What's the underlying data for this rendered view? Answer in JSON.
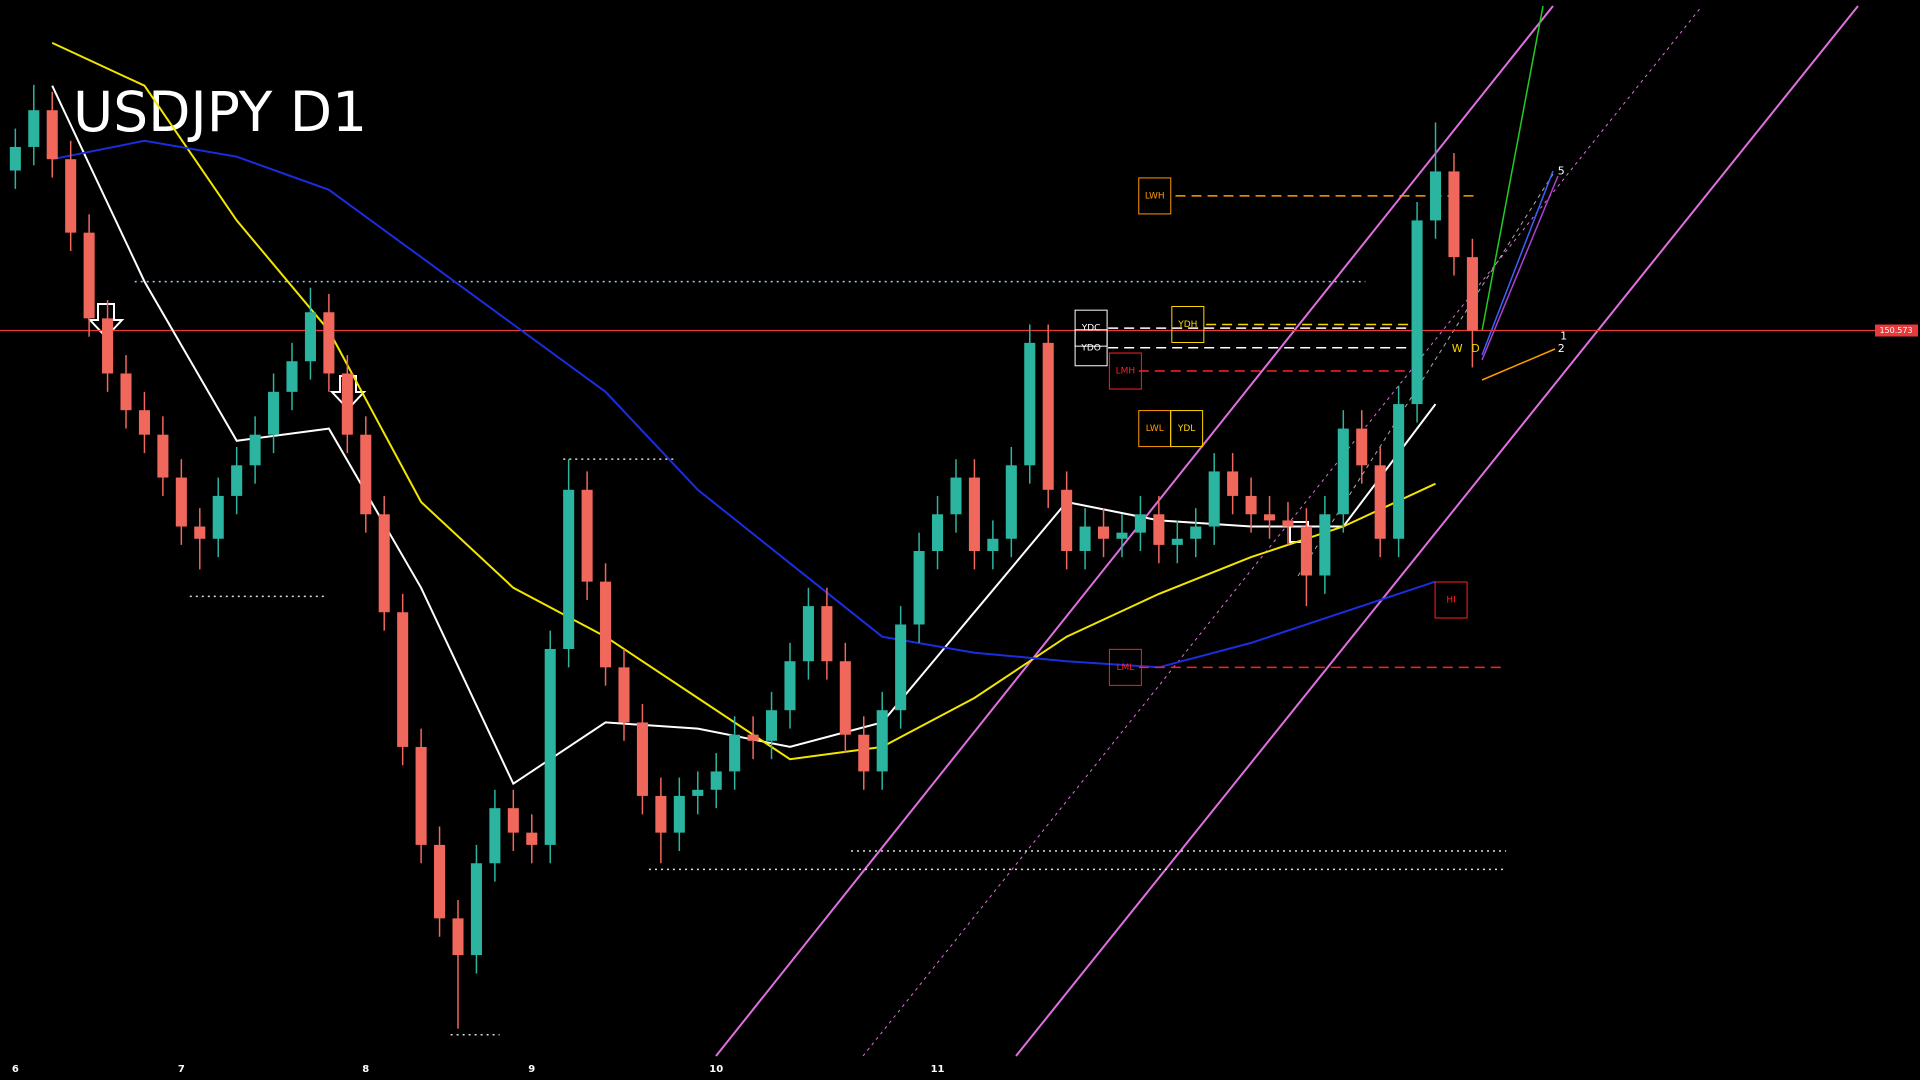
{
  "chart_data": {
    "type": "candlestick",
    "title": "USDJPY D1",
    "categories": [
      "6",
      null,
      null,
      null,
      null,
      null,
      null,
      null,
      null,
      "7",
      null,
      null,
      null,
      null,
      null,
      null,
      null,
      null,
      null,
      "8",
      null,
      null,
      null,
      null,
      null,
      null,
      null,
      null,
      "9",
      null,
      null,
      null,
      null,
      null,
      null,
      null,
      null,
      null,
      "10",
      null,
      null,
      null,
      null,
      null,
      null,
      null,
      null,
      null,
      null,
      null,
      "11",
      null,
      null,
      null,
      null,
      null,
      null,
      null,
      null,
      null,
      null,
      null,
      null,
      null,
      null,
      null,
      null,
      null,
      null,
      null,
      null,
      null,
      null,
      null,
      null,
      null,
      null,
      null,
      null,
      null
    ],
    "open": [
      155.8,
      156.57,
      157.77,
      156.17,
      153.77,
      150.97,
      149.17,
      147.97,
      147.17,
      145.77,
      144.17,
      143.77,
      145.17,
      146.17,
      147.17,
      148.57,
      149.57,
      151.17,
      149.17,
      147.17,
      144.57,
      141.37,
      136.97,
      133.77,
      131.37,
      130.17,
      133.17,
      134.97,
      134.17,
      133.77,
      140.17,
      145.37,
      142.37,
      139.57,
      137.77,
      135.37,
      134.17,
      135.37,
      135.57,
      136.17,
      137.37,
      137.17,
      138.17,
      139.77,
      141.57,
      139.77,
      137.37,
      136.17,
      138.17,
      140.97,
      143.37,
      144.57,
      145.77,
      143.37,
      143.77,
      146.17,
      150.17,
      145.37,
      143.37,
      144.17,
      143.77,
      143.97,
      144.57,
      143.57,
      143.77,
      144.17,
      145.97,
      145.17,
      144.57,
      144.37,
      144.17,
      142.57,
      144.57,
      147.37,
      146.17,
      143.77,
      148.17,
      154.17,
      155.77,
      152.97
    ],
    "high": [
      157.17,
      158.6,
      158.37,
      156.77,
      154.37,
      151.57,
      149.77,
      148.57,
      147.77,
      146.37,
      144.77,
      145.77,
      146.77,
      147.77,
      149.17,
      150.17,
      151.97,
      151.77,
      149.77,
      147.77,
      145.17,
      141.97,
      137.57,
      134.37,
      131.97,
      133.77,
      135.57,
      135.57,
      134.77,
      140.77,
      146.37,
      145.97,
      142.97,
      140.17,
      138.37,
      135.97,
      135.97,
      136.17,
      136.77,
      137.97,
      137.97,
      138.77,
      140.37,
      142.17,
      142.17,
      140.37,
      137.97,
      138.77,
      141.57,
      143.97,
      145.17,
      146.37,
      146.37,
      144.37,
      146.77,
      150.77,
      150.77,
      145.97,
      144.77,
      144.77,
      144.57,
      145.17,
      145.17,
      144.37,
      144.77,
      146.57,
      146.57,
      145.77,
      145.17,
      144.97,
      144.77,
      145.17,
      147.97,
      147.97,
      146.77,
      148.77,
      154.77,
      157.37,
      156.37,
      153.57
    ],
    "low": [
      155.2,
      155.97,
      155.57,
      153.17,
      150.37,
      148.57,
      147.37,
      146.57,
      145.17,
      143.57,
      142.77,
      143.17,
      144.57,
      145.57,
      146.57,
      147.97,
      148.97,
      148.57,
      146.57,
      143.97,
      140.77,
      136.37,
      133.17,
      130.77,
      127.77,
      129.57,
      132.57,
      133.57,
      133.17,
      133.17,
      139.57,
      141.77,
      138.97,
      137.17,
      134.77,
      133.17,
      133.57,
      134.77,
      134.97,
      135.57,
      136.57,
      136.57,
      137.57,
      139.17,
      139.17,
      136.77,
      135.57,
      135.57,
      137.57,
      140.37,
      142.77,
      143.97,
      142.77,
      142.77,
      143.17,
      145.57,
      144.77,
      142.77,
      142.77,
      143.17,
      143.17,
      143.37,
      142.97,
      142.97,
      143.17,
      143.57,
      144.57,
      143.97,
      143.77,
      143.57,
      141.57,
      141.97,
      143.97,
      145.57,
      143.17,
      143.17,
      147.57,
      153.57,
      152.37,
      149.37
    ],
    "close": [
      156.57,
      157.77,
      156.17,
      153.77,
      150.97,
      149.17,
      147.97,
      147.17,
      145.77,
      144.17,
      143.77,
      145.17,
      146.17,
      147.17,
      148.57,
      149.57,
      151.17,
      149.17,
      147.17,
      144.57,
      141.37,
      136.97,
      133.77,
      131.37,
      130.17,
      133.17,
      134.97,
      134.17,
      133.77,
      140.17,
      145.37,
      142.37,
      139.57,
      137.77,
      135.37,
      134.17,
      135.37,
      135.57,
      136.17,
      137.37,
      137.17,
      138.17,
      139.77,
      141.57,
      139.77,
      137.37,
      136.17,
      138.17,
      140.97,
      143.37,
      144.57,
      145.77,
      143.37,
      143.77,
      146.17,
      150.17,
      145.37,
      143.37,
      144.17,
      143.77,
      143.97,
      144.57,
      143.57,
      143.77,
      144.17,
      145.97,
      145.17,
      144.57,
      144.37,
      144.17,
      142.57,
      144.57,
      147.37,
      146.17,
      143.77,
      148.17,
      154.17,
      155.77,
      152.97,
      150.57
    ],
    "up_color": "#2bb5a0",
    "down_color": "#f0675c",
    "ylim": [
      126.09,
      161.37
    ],
    "overlays": [
      {
        "color": "#ffffff",
        "values": [
          158.57,
          152.17,
          146.97,
          147.37,
          142.17,
          135.77,
          137.77,
          137.57,
          136.97,
          137.77,
          141.37,
          144.97,
          144.37,
          144.17,
          144.17,
          148.17
        ]
      },
      {
        "color": "#f2e600",
        "values": [
          159.97,
          158.57,
          154.17,
          150.57,
          144.97,
          142.17,
          140.57,
          138.57,
          136.57,
          136.97,
          138.57,
          140.57,
          141.97,
          143.17,
          144.17,
          145.57
        ]
      },
      {
        "color": "#1a2ee0",
        "values": [
          156.17,
          156.77,
          156.25,
          155.17,
          152.97,
          150.77,
          148.57,
          145.37,
          142.97,
          140.57,
          140.05,
          139.77,
          139.57,
          140.37,
          141.37,
          142.37
        ]
      }
    ],
    "current_price": 150.573,
    "current_price_color": "#e83a3a",
    "levels": [
      {
        "label": "LWH",
        "value": 154.97,
        "color": "#ff9900"
      },
      {
        "label": "YDH",
        "value": 150.77,
        "color": "#ffd700"
      },
      {
        "label": "YDC",
        "value": 150.65,
        "color": "#ffffff"
      },
      {
        "label": "YDO",
        "value": 150.01,
        "color": "#ffffff"
      },
      {
        "label": "LMH",
        "value": 149.25,
        "color": "#ff2020"
      },
      {
        "label": "LWL",
        "value": 147.37,
        "color": "#ff9900"
      },
      {
        "label": "YDL",
        "value": 147.37,
        "color": "#ffd700"
      },
      {
        "label": "LML",
        "value": 139.57,
        "color": "#ff2020"
      },
      {
        "label": "HI",
        "value": 141.77,
        "color": "#ff2020"
      }
    ],
    "swing_levels": [
      152.17,
      146.37,
      141.89,
      133.57,
      132.97,
      127.57
    ],
    "annotations": [
      "5",
      "1",
      "2",
      "W",
      "D"
    ]
  }
}
